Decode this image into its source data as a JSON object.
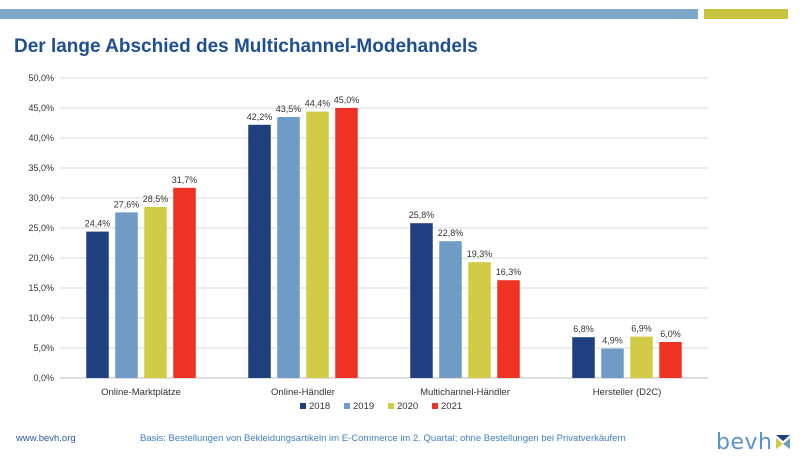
{
  "header": {
    "title": "Der lange Abschied des Multichannel-Modehandels"
  },
  "colors": {
    "top_bar_blue": "#7ea6c9",
    "top_bar_yellow": "#c8c440",
    "title": "#1e4f92",
    "footer_link": "#2a5aa8",
    "footer_note": "#3f7fc0"
  },
  "chart_data": {
    "type": "bar",
    "title": "",
    "xlabel": "",
    "ylabel": "",
    "ylim": [
      0,
      50
    ],
    "yticks": [
      "0,0%",
      "5,0%",
      "10,0%",
      "15,0%",
      "20,0%",
      "25,0%",
      "30,0%",
      "35,0%",
      "40,0%",
      "45,0%",
      "50,0%"
    ],
    "grid": true,
    "legend_position": "bottom",
    "categories": [
      "Online-Marktplätze",
      "Online-Händler",
      "Multichannel-Händler",
      "Hersteller (D2C)"
    ],
    "series": [
      {
        "name": "2018",
        "color": "#1f3f7f",
        "values": [
          24.4,
          42.2,
          25.8,
          6.8
        ],
        "labels": [
          "24,4%",
          "42,2%",
          "25,8%",
          "6,8%"
        ]
      },
      {
        "name": "2019",
        "color": "#6f9bc6",
        "values": [
          27.6,
          43.5,
          22.8,
          4.9
        ],
        "labels": [
          "27,6%",
          "43,5%",
          "22,8%",
          "4,9%"
        ]
      },
      {
        "name": "2020",
        "color": "#d2cb45",
        "values": [
          28.5,
          44.4,
          19.3,
          6.9
        ],
        "labels": [
          "28,5%",
          "44,4%",
          "19,3%",
          "6,9%"
        ]
      },
      {
        "name": "2021",
        "color": "#ee3324",
        "values": [
          31.7,
          45.0,
          16.3,
          6.0
        ],
        "labels": [
          "31,7%",
          "45,0%",
          "16,3%",
          "6,0%"
        ]
      }
    ]
  },
  "footer": {
    "url": "www.bevh.org",
    "note": "Basis: Bestellungen von Bekleidungsartikeln im E-Commerce im 2. Quartal;  ohne Bestellungen bei Privatverkäufern",
    "logo_text": "bevh",
    "logo_icon": "bevh-logo-icon"
  }
}
